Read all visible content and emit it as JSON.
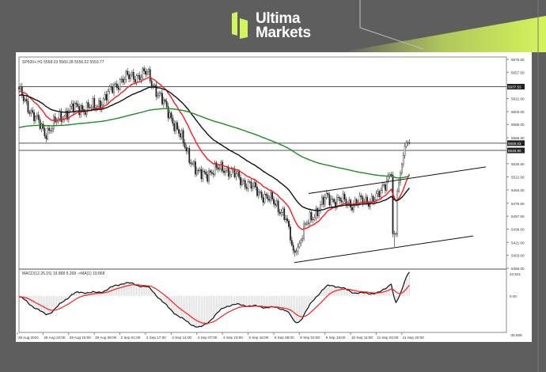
{
  "brand": {
    "line1": "Ultima",
    "line2": "Markets",
    "accent_color": "#d4f45c"
  },
  "chart_data": {
    "type": "candlestick",
    "symbol_header": "SP500+,H1  5558.03 5560.28 5556.02 5559.77",
    "timeframe": "H1",
    "ohlc_last": {
      "open": 5558.03,
      "high": 5560.28,
      "low": 5556.02,
      "close": 5559.77
    },
    "ylim": [
      5385.0,
      5675.5
    ],
    "y_ticks": [
      "5675.50",
      "5657.50",
      "5621.00",
      "5603.00",
      "5585.00",
      "5566.50",
      "5530.50",
      "5512.00",
      "5494.00",
      "5475.50",
      "5457.50",
      "5439.50",
      "5421.00",
      "5403.00",
      "5385.00"
    ],
    "x_ticks": [
      "28 Aug 2024",
      "28 Aug 22:00",
      "29 Aug 15:00",
      "30 Aug 08:00",
      "2 Sep 01:00",
      "2 Sep 17:00",
      "3 Sep 14:00",
      "4 Sep 07:00",
      "4 Sep 23:00",
      "5 Sep 16:00",
      "6 Sep 09:00",
      "9 Sep 02:00",
      "9 Sep 18:00",
      "10 Sep 11:00",
      "11 Sep 04:00",
      "11 Sep 20:00"
    ],
    "key_closes": [
      5631,
      5573,
      5607,
      5609,
      5648,
      5656,
      5591,
      5514,
      5525,
      5500,
      5475,
      5436,
      5483,
      5475,
      5483,
      5557
    ],
    "session_low": 5401,
    "spike_low": 5415,
    "horizontal_levels": [
      {
        "price": 5637.53,
        "label": "5637.53"
      },
      {
        "price": 5559.03,
        "label": "5559.03"
      },
      {
        "price": 5548.9,
        "label": "5548.90"
      }
    ],
    "trendlines": [
      {
        "name": "channel-upper",
        "start_price": 5489,
        "end_price": 5526
      },
      {
        "name": "channel-lower",
        "start_price": 5393,
        "end_price": 5430
      }
    ],
    "moving_averages": [
      {
        "color": "#ff1a1a"
      },
      {
        "color": "#111111"
      },
      {
        "color": "#1e8c1e"
      }
    ],
    "macd": {
      "label": "MACD(12,26,15) 19.868 5.268 ->MA(1) 19.868",
      "ylim": [
        -35.859,
        22.521
      ],
      "y_ticks": [
        "22.521",
        "0.00",
        "-35.859"
      ],
      "macd_color": "#111111",
      "signal_color": "#ff1a1a",
      "histogram_color": "#bbbbbb"
    },
    "grid": false
  }
}
